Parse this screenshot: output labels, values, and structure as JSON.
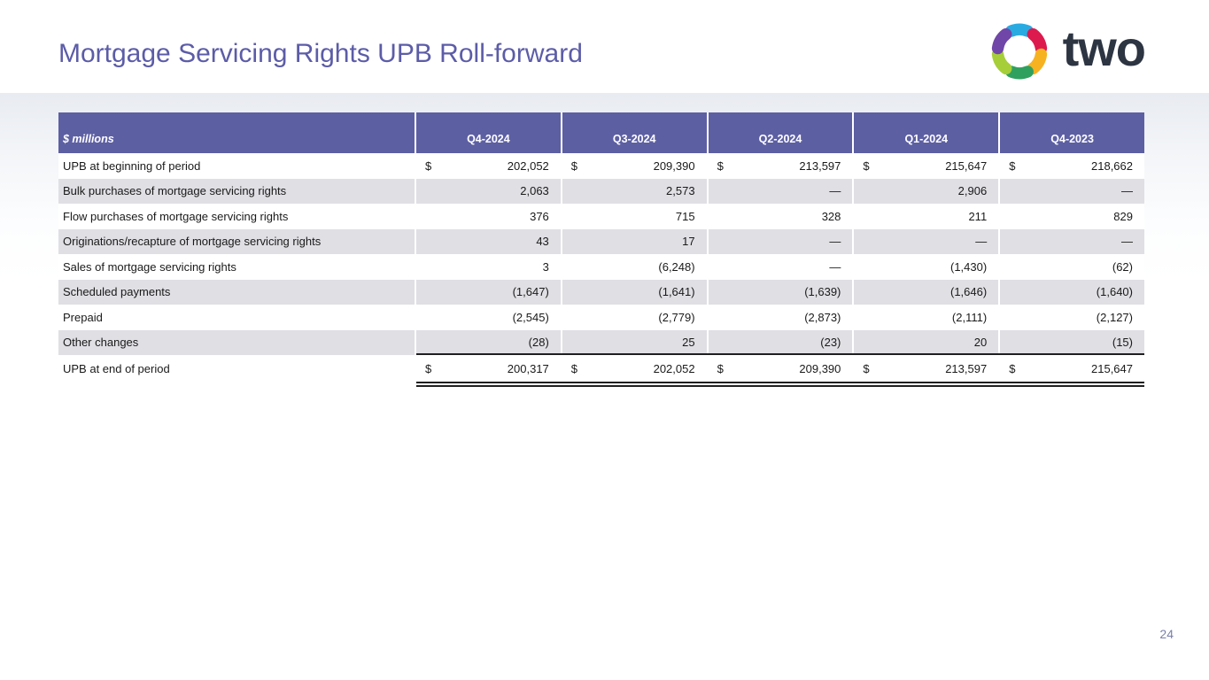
{
  "slide": {
    "title": "Mortgage Servicing Rights UPB Roll-forward",
    "page_number": "24"
  },
  "logo": {
    "wordmark": "two",
    "icon": "pinwheel-icon",
    "segment_colors": {
      "top": "#29abe2",
      "top_right": "#dd1a4e",
      "bottom_right": "#f6b221",
      "bottom": "#2fa05e",
      "bottom_left": "#a6ce39",
      "top_left": "#7046a8"
    },
    "wordmark_color": "#2d3442"
  },
  "colors": {
    "accent_purple_header": "#5d5fa3",
    "title_purple": "#5c5ca8",
    "alt_row_gray": "#dfdfe4",
    "page_number_gray_purple": "#7a7fa8",
    "rule_black": "#1f1f1f"
  },
  "table": {
    "unit_label": "$ millions",
    "period_columns": [
      "Q4-2024",
      "Q3-2024",
      "Q2-2024",
      "Q1-2024",
      "Q4-2023"
    ],
    "rows": [
      {
        "label": "UPB at beginning of period",
        "dollar_sign": true,
        "total": false,
        "values": [
          "202,052",
          "209,390",
          "213,597",
          "215,647",
          "218,662"
        ]
      },
      {
        "label": "Bulk purchases of mortgage servicing rights",
        "dollar_sign": false,
        "total": false,
        "values": [
          "2,063",
          "2,573",
          "—",
          "2,906",
          "—"
        ]
      },
      {
        "label": "Flow purchases of mortgage servicing rights",
        "dollar_sign": false,
        "total": false,
        "values": [
          "376",
          "715",
          "328",
          "211",
          "829"
        ]
      },
      {
        "label": "Originations/recapture of mortgage servicing rights",
        "dollar_sign": false,
        "total": false,
        "values": [
          "43",
          "17",
          "—",
          "—",
          "—"
        ]
      },
      {
        "label": "Sales of mortgage servicing rights",
        "dollar_sign": false,
        "total": false,
        "values": [
          "3",
          "(6,248)",
          "—",
          "(1,430)",
          "(62)"
        ]
      },
      {
        "label": "Scheduled payments",
        "dollar_sign": false,
        "total": false,
        "values": [
          "(1,647)",
          "(1,641)",
          "(1,639)",
          "(1,646)",
          "(1,640)"
        ]
      },
      {
        "label": "Prepaid",
        "dollar_sign": false,
        "total": false,
        "values": [
          "(2,545)",
          "(2,779)",
          "(2,873)",
          "(2,111)",
          "(2,127)"
        ]
      },
      {
        "label": "Other changes",
        "dollar_sign": false,
        "total": false,
        "values": [
          "(28)",
          "25",
          "(23)",
          "20",
          "(15)"
        ]
      },
      {
        "label": "UPB at end of period",
        "dollar_sign": true,
        "total": true,
        "values": [
          "200,317",
          "202,052",
          "209,390",
          "213,597",
          "215,647"
        ]
      }
    ]
  }
}
